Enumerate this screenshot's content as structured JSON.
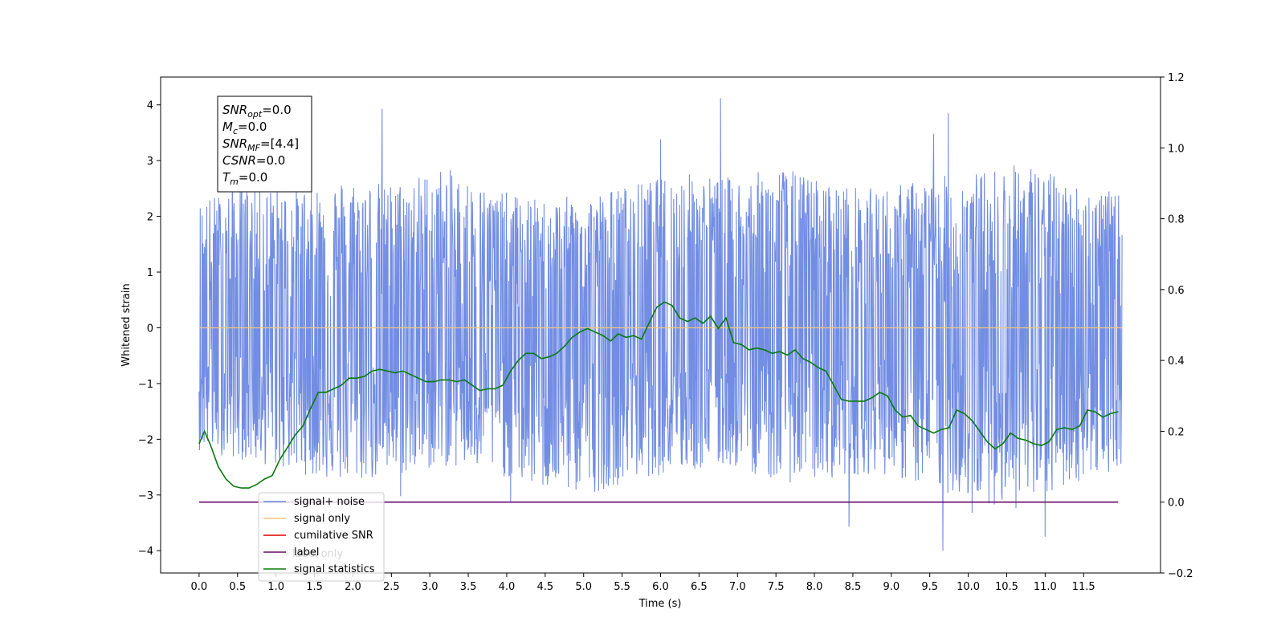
{
  "chart_data": {
    "type": "line",
    "xlabel": "Time (s)",
    "ylabel": "Whitened strain",
    "xlim": [
      -0.5,
      12.5
    ],
    "ylim": [
      -4.4,
      4.5
    ],
    "y2lim": [
      -0.2,
      1.2
    ],
    "xticks": [
      "0.0",
      "0.5",
      "1.0",
      "1.5",
      "2.0",
      "2.5",
      "3.0",
      "3.5",
      "4.0",
      "4.5",
      "5.0",
      "5.5",
      "6.0",
      "6.5",
      "7.0",
      "7.5",
      "8.0",
      "8.5",
      "9.0",
      "9.5",
      "10.0",
      "10.5",
      "11.0",
      "11.5"
    ],
    "yticks": [
      "4",
      "3",
      "2",
      "1",
      "0",
      "−1",
      "−2",
      "−3",
      "−4"
    ],
    "y2ticks": [
      "1.2",
      "1.0",
      "0.8",
      "0.6",
      "0.4",
      "0.2",
      "0.0",
      "−0.2"
    ],
    "annotation_lines": [
      {
        "pre": "SNR",
        "sub": "opt",
        "post": "=0.0"
      },
      {
        "pre": "M",
        "sub": "c",
        "post": "=0.0"
      },
      {
        "pre": "SNR",
        "sub": "MF",
        "post": "=[4.4]"
      },
      {
        "pre": "CSNR",
        "sub": "",
        "post": "=0.0"
      },
      {
        "pre": "T",
        "sub": "m",
        "post": "=0.0"
      }
    ],
    "legend": {
      "position": "lower-left",
      "entries": [
        {
          "label": "signal+ noise",
          "color": "#6a87e2"
        },
        {
          "label": "signal only",
          "color": "#f5c77a"
        },
        {
          "label": "cumilative SNR",
          "color": "#e00000"
        },
        {
          "label": "label",
          "color": "#6a0a6a"
        },
        {
          "label": "signal statistics",
          "color": "#0a7a0a"
        }
      ],
      "hidden_text": "label only"
    },
    "series": [
      {
        "name": "signal+ noise",
        "axis": "left",
        "color": "#6a87e2",
        "x_range": [
          0.0,
          12.0
        ],
        "envelope_upper": [
          2.3,
          2.6,
          2.5,
          2.7,
          2.6,
          2.9,
          2.5,
          2.3,
          2.4,
          2.6,
          2.8,
          2.7,
          2.9,
          2.6,
          2.5,
          2.7,
          2.8,
          3.0,
          2.6,
          2.4
        ],
        "envelope_lower": [
          -2.2,
          -2.4,
          -2.6,
          -2.8,
          -2.7,
          -2.5,
          -2.6,
          -2.9,
          -3.0,
          -2.7,
          -2.6,
          -2.5,
          -2.8,
          -2.7,
          -2.6,
          -2.9,
          -3.1,
          -3.3,
          -2.8,
          -2.5
        ],
        "peaks": [
          {
            "x": 2.38,
            "y": 3.93
          },
          {
            "x": 6.78,
            "y": 4.12
          },
          {
            "x": 9.74,
            "y": 3.85
          },
          {
            "x": 9.55,
            "y": 3.48
          },
          {
            "x": 6.0,
            "y": 3.38
          },
          {
            "x": 8.45,
            "y": -3.57
          },
          {
            "x": 9.67,
            "y": -4.0
          },
          {
            "x": 11.0,
            "y": -3.75
          },
          {
            "x": 10.05,
            "y": -3.32
          },
          {
            "x": 4.05,
            "y": -3.12
          },
          {
            "x": 2.62,
            "y": -3.02
          }
        ]
      },
      {
        "name": "signal only",
        "axis": "left",
        "color": "#f5c77a",
        "x": [
          0.0,
          12.0
        ],
        "y": [
          0.0,
          0.0
        ]
      },
      {
        "name": "label",
        "axis": "right",
        "color": "#6a0a6a",
        "x": [
          0.0,
          11.95
        ],
        "y": [
          0.0,
          0.0
        ]
      },
      {
        "name": "signal statistics",
        "axis": "right",
        "color": "#0a7a0a",
        "x": [
          0.0,
          0.07,
          0.15,
          0.25,
          0.35,
          0.45,
          0.55,
          0.65,
          0.75,
          0.85,
          0.95,
          1.05,
          1.15,
          1.25,
          1.35,
          1.45,
          1.55,
          1.65,
          1.75,
          1.85,
          1.95,
          2.05,
          2.15,
          2.25,
          2.35,
          2.45,
          2.55,
          2.65,
          2.75,
          2.85,
          2.95,
          3.05,
          3.15,
          3.25,
          3.35,
          3.45,
          3.55,
          3.65,
          3.75,
          3.85,
          3.95,
          4.05,
          4.15,
          4.25,
          4.35,
          4.45,
          4.55,
          4.65,
          4.75,
          4.85,
          4.95,
          5.05,
          5.15,
          5.25,
          5.35,
          5.45,
          5.55,
          5.65,
          5.75,
          5.85,
          5.95,
          6.05,
          6.15,
          6.25,
          6.35,
          6.45,
          6.55,
          6.65,
          6.75,
          6.85,
          6.95,
          7.05,
          7.15,
          7.25,
          7.35,
          7.45,
          7.55,
          7.65,
          7.75,
          7.85,
          7.95,
          8.05,
          8.15,
          8.25,
          8.35,
          8.45,
          8.55,
          8.65,
          8.75,
          8.85,
          8.95,
          9.05,
          9.15,
          9.25,
          9.35,
          9.45,
          9.55,
          9.65,
          9.75,
          9.85,
          9.95,
          10.05,
          10.15,
          10.25,
          10.35,
          10.45,
          10.55,
          10.65,
          10.75,
          10.85,
          10.95,
          11.05,
          11.15,
          11.25,
          11.35,
          11.45,
          11.55,
          11.65,
          11.75,
          11.85,
          11.95
        ],
        "y": [
          0.165,
          0.2,
          0.16,
          0.1,
          0.065,
          0.045,
          0.04,
          0.04,
          0.05,
          0.065,
          0.075,
          0.12,
          0.155,
          0.19,
          0.215,
          0.265,
          0.31,
          0.31,
          0.32,
          0.33,
          0.35,
          0.35,
          0.355,
          0.37,
          0.375,
          0.37,
          0.365,
          0.37,
          0.36,
          0.35,
          0.34,
          0.34,
          0.345,
          0.345,
          0.34,
          0.345,
          0.33,
          0.315,
          0.32,
          0.32,
          0.33,
          0.37,
          0.4,
          0.42,
          0.42,
          0.405,
          0.41,
          0.42,
          0.44,
          0.465,
          0.48,
          0.49,
          0.48,
          0.47,
          0.455,
          0.475,
          0.465,
          0.47,
          0.46,
          0.505,
          0.55,
          0.565,
          0.555,
          0.52,
          0.51,
          0.52,
          0.505,
          0.525,
          0.49,
          0.52,
          0.45,
          0.445,
          0.43,
          0.435,
          0.43,
          0.42,
          0.425,
          0.415,
          0.43,
          0.405,
          0.395,
          0.38,
          0.37,
          0.33,
          0.29,
          0.285,
          0.285,
          0.285,
          0.295,
          0.31,
          0.3,
          0.26,
          0.24,
          0.245,
          0.215,
          0.205,
          0.195,
          0.205,
          0.21,
          0.26,
          0.25,
          0.23,
          0.2,
          0.17,
          0.15,
          0.165,
          0.195,
          0.18,
          0.175,
          0.165,
          0.16,
          0.17,
          0.205,
          0.21,
          0.205,
          0.215,
          0.26,
          0.255,
          0.24,
          0.25,
          0.255
        ]
      }
    ]
  }
}
